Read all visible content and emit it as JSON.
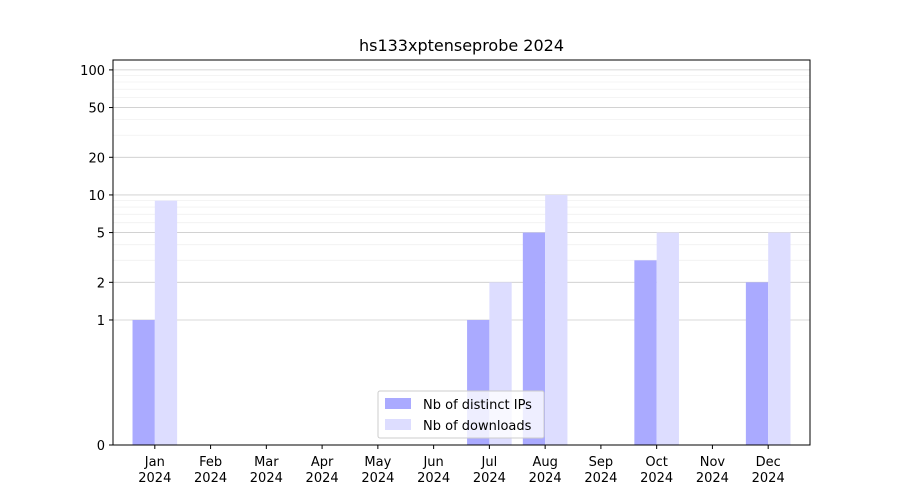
{
  "chart_data": {
    "type": "bar",
    "title": "hs133xptenseprobe 2024",
    "xlabel": "",
    "ylabel": "",
    "categories": [
      "Jan\n2024",
      "Feb\n2024",
      "Mar\n2024",
      "Apr\n2024",
      "May\n2024",
      "Jun\n2024",
      "Jul\n2024",
      "Aug\n2024",
      "Sep\n2024",
      "Oct\n2024",
      "Nov\n2024",
      "Dec\n2024"
    ],
    "series": [
      {
        "name": "Nb of distinct IPs",
        "color": "#aaaaff",
        "values": [
          1,
          0,
          0,
          0,
          0,
          0,
          1,
          5,
          0,
          3,
          0,
          2
        ]
      },
      {
        "name": "Nb of downloads",
        "color": "#ddddff",
        "values": [
          9,
          0,
          0,
          0,
          0,
          0,
          2,
          10,
          0,
          5,
          0,
          5
        ]
      }
    ],
    "y_scale": "symlog",
    "ylim": [
      0,
      120
    ],
    "yticks": [
      0,
      1,
      2,
      5,
      10,
      20,
      50,
      100
    ],
    "grid": true,
    "legend_position": "lower center"
  }
}
